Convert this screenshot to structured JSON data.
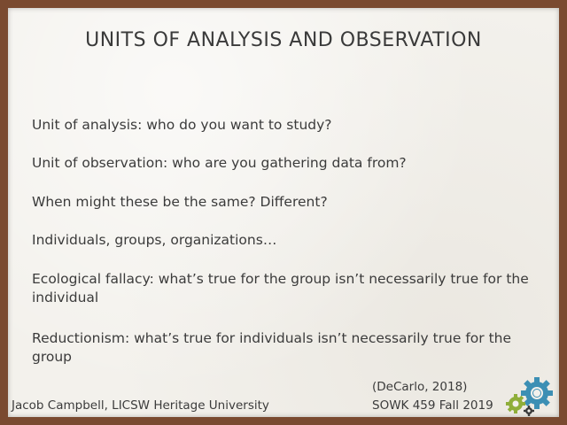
{
  "slide": {
    "title": "UNITS OF ANALYSIS AND OBSERVATION",
    "bullets": [
      "Unit of analysis: who do you want to study?",
      "Unit of observation: who are you gathering data from?",
      "When might these be the same? Different?",
      "Individuals, groups, organizations…",
      "Ecological fallacy: what’s true for the group isn’t necessarily true for the individual",
      "Reductionism: what’s true for individuals isn’t necessarily true for the group"
    ],
    "citation": "(DeCarlo, 2018)",
    "footer_left": "Jacob Campbell, LICSW Heritage University",
    "footer_right": "SOWK 459 Fall 2019",
    "logo_icon": "gears-icon"
  },
  "colors": {
    "frame": "#7a4a30",
    "background": "#f3f1ec",
    "text": "#3b3b3b",
    "gear_blue": "#3c8fb4",
    "gear_green": "#8fae3a",
    "gear_dark": "#3a3a3a"
  }
}
